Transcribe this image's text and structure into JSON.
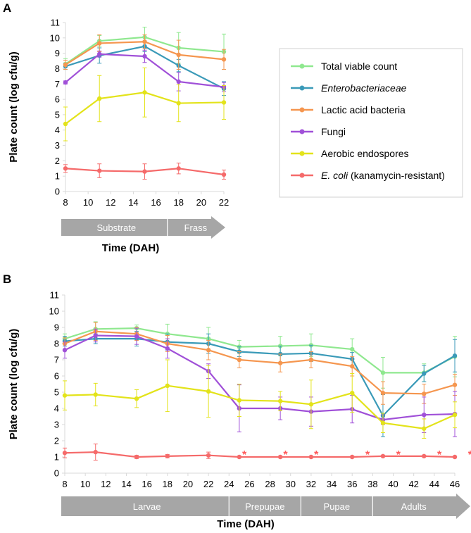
{
  "chart_data": [
    {
      "panel": "A",
      "type": "line",
      "ylabel": "Plate count (log cfu/g)",
      "xlabel": "Time (DAH)",
      "ylim": [
        0,
        11
      ],
      "xlim": [
        8,
        22
      ],
      "yticks": [
        0,
        1,
        2,
        3,
        4,
        5,
        6,
        7,
        8,
        9,
        10,
        11
      ],
      "xticks": [
        8,
        10,
        12,
        14,
        16,
        18,
        20,
        22
      ],
      "x": [
        8,
        11,
        15,
        18,
        22
      ],
      "stages": [
        {
          "label": "Substrate",
          "from": 8,
          "to": 17
        },
        {
          "label": "Frass",
          "from": 17,
          "to": 22
        }
      ],
      "series": [
        {
          "name": "Total viable count",
          "values": [
            8.3,
            9.8,
            10.05,
            9.35,
            9.1
          ],
          "errors": [
            0.35,
            0.35,
            0.65,
            1.0,
            1.15
          ]
        },
        {
          "name": "Enterobacteriaceae",
          "values": [
            8.15,
            8.85,
            9.45,
            8.2,
            6.7
          ],
          "errors": [
            0.2,
            0.5,
            0.35,
            0.4,
            0.45
          ]
        },
        {
          "name": "Lactic acid bacteria",
          "values": [
            8.25,
            9.65,
            9.75,
            8.9,
            8.6
          ],
          "errors": [
            0.3,
            0.55,
            0.45,
            0.95,
            0.65
          ]
        },
        {
          "name": "Fungi",
          "values": [
            7.1,
            8.95,
            8.8,
            7.15,
            6.8
          ],
          "errors": [
            0.1,
            0.2,
            0.4,
            0.6,
            0.3
          ]
        },
        {
          "name": "Aerobic endospores",
          "values": [
            4.4,
            6.05,
            6.45,
            5.75,
            5.8
          ],
          "errors": [
            1.1,
            1.5,
            1.6,
            1.2,
            1.1
          ]
        },
        {
          "name": "E. coli (kanamycin-resistant)",
          "values": [
            1.5,
            1.35,
            1.3,
            1.5,
            1.1
          ],
          "errors": [
            0.25,
            0.45,
            0.5,
            0.35,
            0.3
          ]
        }
      ]
    },
    {
      "panel": "B",
      "type": "line",
      "ylabel": "Plate count (log cfu/g)",
      "xlabel": "Time (DAH)",
      "ylim": [
        0,
        11
      ],
      "xlim": [
        8,
        46
      ],
      "yticks": [
        0,
        1,
        2,
        3,
        4,
        5,
        6,
        7,
        8,
        9,
        10,
        11
      ],
      "xticks": [
        8,
        10,
        12,
        14,
        16,
        18,
        20,
        22,
        24,
        26,
        28,
        30,
        32,
        34,
        36,
        38,
        40,
        42,
        44,
        46
      ],
      "x": [
        8,
        11,
        15,
        18,
        22,
        25,
        29,
        32,
        36,
        39,
        43,
        46
      ],
      "stages": [
        {
          "label": "Larvae",
          "from": 8,
          "to": 24
        },
        {
          "label": "Prepupae",
          "from": 24,
          "to": 31
        },
        {
          "label": "Pupae",
          "from": 31,
          "to": 38
        },
        {
          "label": "Adults",
          "from": 38,
          "to": 46
        }
      ],
      "asterisk_x": [
        25.5,
        29.5,
        32.5,
        37.5,
        40.5,
        44.5,
        47.5
      ],
      "series": [
        {
          "name": "Total viable count",
          "values": [
            8.3,
            8.9,
            8.95,
            8.6,
            8.3,
            7.8,
            7.85,
            7.9,
            7.65,
            6.2,
            6.2,
            7.2
          ],
          "errors": [
            0.3,
            0.45,
            0.2,
            0.6,
            0.7,
            0.4,
            0.6,
            0.7,
            0.65,
            0.95,
            0.55,
            1.25
          ]
        },
        {
          "name": "Enterobacteriaceae",
          "values": [
            8.15,
            8.3,
            8.3,
            8.1,
            8.0,
            7.5,
            7.35,
            7.4,
            7.05,
            3.55,
            6.15,
            7.25
          ],
          "errors": [
            0.3,
            0.3,
            0.45,
            0.5,
            0.6,
            0.3,
            0.5,
            0.5,
            0.4,
            1.3,
            0.5,
            1.0
          ]
        },
        {
          "name": "Lactic acid bacteria",
          "values": [
            8.0,
            8.75,
            8.6,
            8.0,
            7.6,
            7.0,
            6.8,
            7.0,
            6.6,
            4.95,
            4.9,
            5.45
          ],
          "errors": [
            0.35,
            0.55,
            0.4,
            0.5,
            0.6,
            0.5,
            0.55,
            0.5,
            0.6,
            0.7,
            0.6,
            0.65
          ]
        },
        {
          "name": "Fungi",
          "values": [
            7.6,
            8.5,
            8.45,
            7.7,
            6.3,
            4.0,
            4.0,
            3.8,
            3.95,
            3.3,
            3.6,
            3.65
          ],
          "errors": [
            0.5,
            0.4,
            0.5,
            0.6,
            0.45,
            1.45,
            0.7,
            0.9,
            0.85,
            0.3,
            1.1,
            1.4
          ]
        },
        {
          "name": "Aerobic endospores",
          "values": [
            4.8,
            4.85,
            4.6,
            5.4,
            5.05,
            4.5,
            4.45,
            4.25,
            4.95,
            3.1,
            2.75,
            3.6
          ],
          "errors": [
            0.9,
            0.7,
            0.55,
            1.6,
            1.6,
            1.0,
            0.6,
            1.5,
            1.2,
            0.6,
            0.6,
            0.8
          ]
        },
        {
          "name": "E. coli (kanamycin-resistant)",
          "values": [
            1.25,
            1.3,
            1.0,
            1.05,
            1.1,
            1.0,
            1.0,
            1.0,
            1.0,
            1.05,
            1.05,
            1.0
          ],
          "errors": [
            0.3,
            0.5,
            0.1,
            0.1,
            0.2,
            0.05,
            0.05,
            0.05,
            0.05,
            0.05,
            0.05,
            0.05
          ]
        }
      ]
    }
  ],
  "legend": {
    "items": [
      {
        "name": "Total viable count",
        "italic": "",
        "rest": "Total viable count",
        "color": "#8fe88f"
      },
      {
        "name": "Enterobacteriaceae",
        "italic": "Enterobacteriaceae",
        "rest": "",
        "color": "#3a9ab8"
      },
      {
        "name": "Lactic acid bacteria",
        "italic": "",
        "rest": "Lactic acid bacteria",
        "color": "#f5964f"
      },
      {
        "name": "Fungi",
        "italic": "",
        "rest": "Fungi",
        "color": "#a050d8"
      },
      {
        "name": "Aerobic endospores",
        "italic": "",
        "rest": "Aerobic endospores",
        "color": "#e3e31a"
      },
      {
        "name": "E. coli (kanamycin-resistant)",
        "italic": "E. coli",
        "rest": " (kanamycin-resistant)",
        "color": "#f56a6a"
      }
    ]
  },
  "colors": {
    "axis": "#d9d9d9",
    "stage_arrow": "#a6a6a6",
    "asterisk": "#ff5a5a"
  }
}
